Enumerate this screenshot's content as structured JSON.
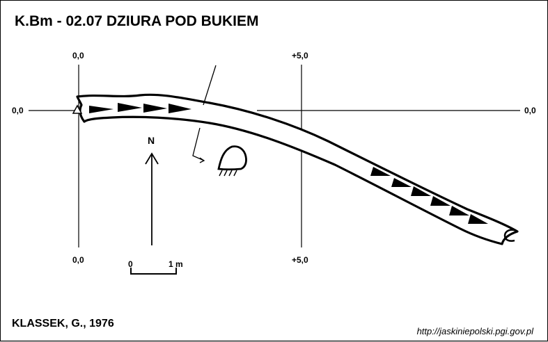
{
  "title": "K.Bm - 02.07 DZIURA POD BUKIEM",
  "author": "KLASSEK, G., 1976",
  "url": "http://jaskiniepolski.pgi.gov.pl",
  "grid_labels": {
    "x_zero_top": "0,0",
    "x_five_top": "+5,0",
    "y_zero_left": "0,0",
    "y_zero_right": "0,0",
    "x_zero_bottom": "0,0",
    "x_five_bottom": "+5,0"
  },
  "north_label": "N",
  "scale": {
    "start": "0",
    "end": "1 m"
  }
}
